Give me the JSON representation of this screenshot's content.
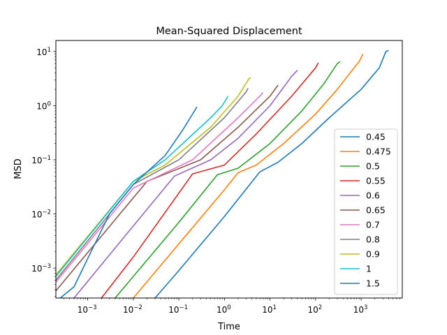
{
  "chart_data": {
    "type": "line",
    "title": "Mean-Squared Displacement",
    "xlabel": "Time",
    "ylabel": "MSD",
    "xscale": "log",
    "yscale": "log",
    "xlim": [
      0.0002,
      8000
    ],
    "ylim": [
      0.00028,
      16
    ],
    "grid": false,
    "legend": "lower-right",
    "x_ticks": [
      {
        "value": 0.001,
        "base": "10",
        "exp": "−3"
      },
      {
        "value": 0.01,
        "base": "10",
        "exp": "−2"
      },
      {
        "value": 0.1,
        "base": "10",
        "exp": "−1"
      },
      {
        "value": 1,
        "base": "10",
        "exp": "0"
      },
      {
        "value": 10,
        "base": "10",
        "exp": "1"
      },
      {
        "value": 100,
        "base": "10",
        "exp": "2"
      },
      {
        "value": 1000,
        "base": "10",
        "exp": "3"
      }
    ],
    "y_ticks": [
      {
        "value": 0.001,
        "base": "10",
        "exp": "−3"
      },
      {
        "value": 0.01,
        "base": "10",
        "exp": "−2"
      },
      {
        "value": 0.1,
        "base": "10",
        "exp": "−1"
      },
      {
        "value": 1,
        "base": "10",
        "exp": "0"
      },
      {
        "value": 10,
        "base": "10",
        "exp": "1"
      }
    ],
    "series": [
      {
        "name": "0.45",
        "color": "#1f77b4",
        "points": [
          [
            0.03,
            0.00028
          ],
          [
            0.1,
            0.0009
          ],
          [
            1,
            0.009
          ],
          [
            6,
            0.06
          ],
          [
            15,
            0.09
          ],
          [
            50,
            0.2
          ],
          [
            200,
            0.6
          ],
          [
            1000,
            2.0
          ],
          [
            2500,
            5.0
          ],
          [
            3500,
            10.0
          ],
          [
            4000,
            10.5
          ]
        ]
      },
      {
        "name": "0.475",
        "color": "#ff7f0e",
        "points": [
          [
            0.01,
            0.00028
          ],
          [
            0.1,
            0.0028
          ],
          [
            1,
            0.028
          ],
          [
            2,
            0.058
          ],
          [
            5,
            0.08
          ],
          [
            20,
            0.2
          ],
          [
            100,
            0.7
          ],
          [
            300,
            2.0
          ],
          [
            700,
            5.0
          ],
          [
            900,
            6.5
          ],
          [
            1100,
            9.0
          ]
        ]
      },
      {
        "name": "0.5",
        "color": "#2ca02c",
        "points": [
          [
            0.004,
            0.00028
          ],
          [
            0.1,
            0.007
          ],
          [
            0.7,
            0.053
          ],
          [
            2,
            0.07
          ],
          [
            10,
            0.2
          ],
          [
            50,
            0.8
          ],
          [
            150,
            2.5
          ],
          [
            300,
            6.0
          ],
          [
            350,
            6.5
          ]
        ]
      },
      {
        "name": "0.55",
        "color": "#d62728",
        "points": [
          [
            0.002,
            0.00028
          ],
          [
            0.01,
            0.0016
          ],
          [
            0.2,
            0.055
          ],
          [
            1,
            0.08
          ],
          [
            5,
            0.3
          ],
          [
            30,
            1.5
          ],
          [
            100,
            5.0
          ],
          [
            115,
            6.2
          ]
        ]
      },
      {
        "name": "0.6",
        "color": "#9467bd",
        "points": [
          [
            0.0005,
            0.00028
          ],
          [
            0.01,
            0.006
          ],
          [
            0.08,
            0.05
          ],
          [
            0.5,
            0.1
          ],
          [
            2,
            0.25
          ],
          [
            10,
            1.0
          ],
          [
            30,
            3.5
          ],
          [
            40,
            4.5
          ]
        ]
      },
      {
        "name": "0.65",
        "color": "#8c564b",
        "points": [
          [
            0.0002,
            0.00038
          ],
          [
            0.02,
            0.04
          ],
          [
            0.3,
            0.1
          ],
          [
            2,
            0.4
          ],
          [
            10,
            1.5
          ],
          [
            15,
            2.4
          ]
        ]
      },
      {
        "name": "0.7",
        "color": "#e377c2",
        "points": [
          [
            0.0002,
            0.00055
          ],
          [
            0.01,
            0.03
          ],
          [
            0.2,
            0.1
          ],
          [
            2,
            0.6
          ],
          [
            6,
            1.5
          ],
          [
            7,
            1.75
          ]
        ]
      },
      {
        "name": "0.8",
        "color": "#7f7f7f",
        "points": [
          [
            0.0002,
            0.0006
          ],
          [
            0.01,
            0.035
          ],
          [
            0.1,
            0.1
          ],
          [
            1,
            0.6
          ],
          [
            3,
            1.8
          ],
          [
            3.3,
            2.1
          ]
        ]
      },
      {
        "name": "0.9",
        "color": "#bcbd22",
        "points": [
          [
            0.0002,
            0.00075
          ],
          [
            0.01,
            0.04
          ],
          [
            0.05,
            0.08
          ],
          [
            0.5,
            0.4
          ],
          [
            2,
            1.5
          ],
          [
            3.5,
            3.2
          ],
          [
            3.8,
            3.3
          ]
        ]
      },
      {
        "name": "1",
        "color": "#17becf",
        "points": [
          [
            0.0002,
            0.0007
          ],
          [
            0.01,
            0.04
          ],
          [
            0.05,
            0.1
          ],
          [
            0.5,
            0.6
          ],
          [
            0.9,
            1.0
          ],
          [
            1.2,
            1.5
          ]
        ]
      },
      {
        "name": "1.5",
        "color": "#1f77b4",
        "points": [
          [
            0.00025,
            0.00028
          ],
          [
            0.0005,
            0.00045
          ],
          [
            0.001,
            0.0015
          ],
          [
            0.003,
            0.01
          ],
          [
            0.01,
            0.035
          ],
          [
            0.05,
            0.12
          ],
          [
            0.12,
            0.35
          ],
          [
            0.25,
            0.95
          ]
        ]
      }
    ]
  }
}
